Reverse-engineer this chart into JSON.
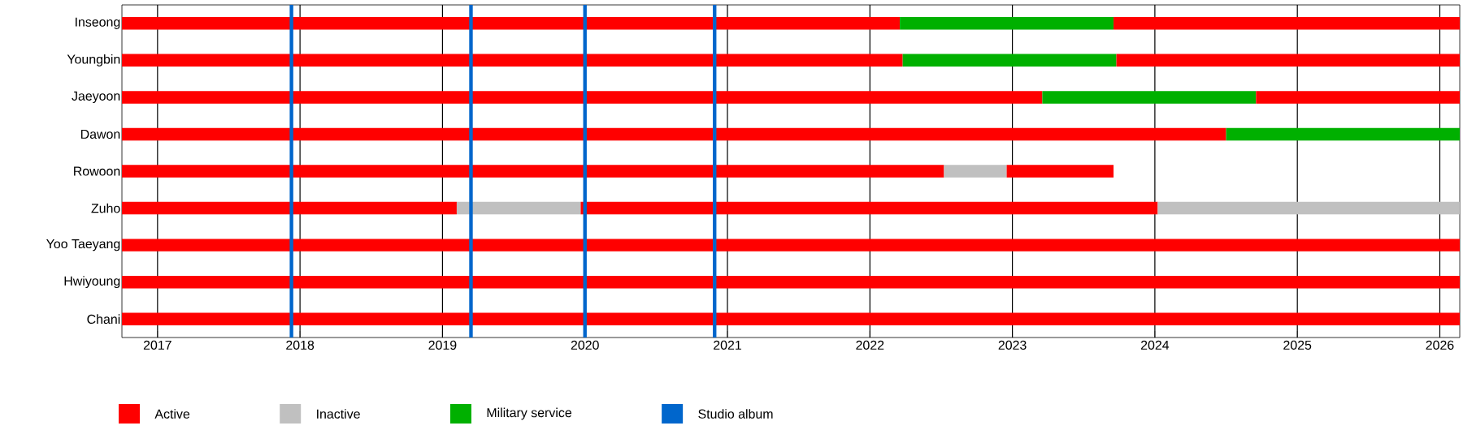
{
  "chart_data": {
    "type": "bar",
    "orientation": "horizontal",
    "grid": "x",
    "legend": "bottom",
    "categories": [
      "Inseong",
      "Youngbin",
      "Jaeyoon",
      "Dawon",
      "Rowoon",
      "Zuho",
      "Yoo Taeyang",
      "Hwiyoung",
      "Chani"
    ],
    "xlim": [
      2016.75,
      2026.14
    ],
    "xticks": [
      2017,
      2018,
      2019,
      2020,
      2021,
      2022,
      2023,
      2024,
      2025,
      2026
    ],
    "series": [
      {
        "name": "Active",
        "color": "#ff0000",
        "base": [
          2016.75,
          2016.75,
          2016.75,
          2016.75,
          2016.75,
          2016.75,
          2016.75,
          2016.75,
          2016.75
        ],
        "values": [
          5.46,
          5.48,
          6.46,
          7.75,
          5.77,
          2.35,
          9.39,
          9.39,
          9.39
        ]
      },
      {
        "name": "Inactive",
        "color": "#c0c0c0",
        "base": [
          null,
          null,
          null,
          null,
          2022.52,
          2019.1,
          null,
          null,
          null
        ],
        "values": [
          null,
          null,
          null,
          null,
          0.44,
          0.87,
          null,
          null,
          null
        ]
      },
      {
        "name": "Military service",
        "color": "#00b000",
        "base": [
          2022.21,
          2022.23,
          2023.21,
          2024.5,
          null,
          null,
          null,
          null,
          null
        ],
        "values": [
          1.5,
          1.5,
          1.5,
          1.64,
          null,
          null,
          null,
          null,
          null
        ]
      },
      {
        "color": "#ff0000",
        "base": [
          2023.71,
          2023.73,
          2024.71,
          null,
          2022.96,
          2019.97,
          null,
          null,
          null
        ],
        "values": [
          2.43,
          2.41,
          1.43,
          null,
          0.75,
          4.05,
          null,
          null,
          null
        ]
      },
      {
        "color": "#c0c0c0",
        "base": [
          null,
          null,
          null,
          null,
          null,
          2024.02,
          null,
          null,
          null
        ],
        "values": [
          null,
          null,
          null,
          null,
          null,
          2.12,
          null,
          null,
          null
        ]
      }
    ],
    "ref_lines": [
      {
        "axis": "x",
        "value": 2017.94,
        "color": "#0066cc",
        "label": "Studio album"
      },
      {
        "axis": "x",
        "value": 2019.2,
        "color": "#0066cc"
      },
      {
        "axis": "x",
        "value": 2020.0,
        "color": "#0066cc"
      },
      {
        "axis": "x",
        "value": 2020.91,
        "color": "#0066cc"
      }
    ]
  }
}
